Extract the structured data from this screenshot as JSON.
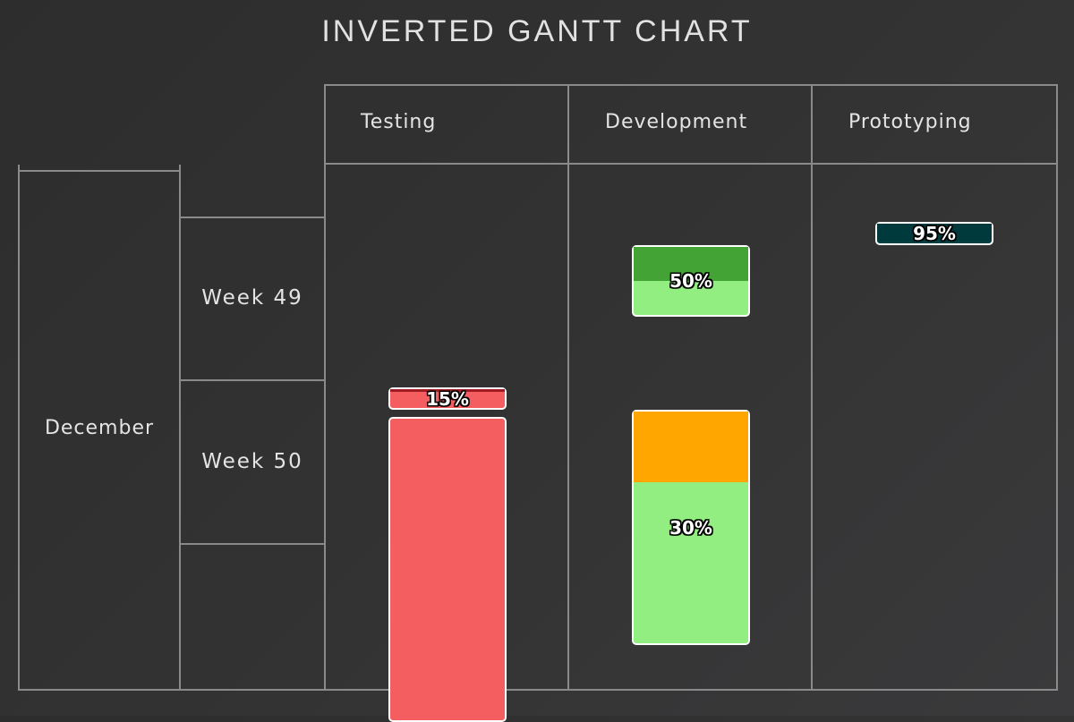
{
  "chart_data": {
    "type": "gantt",
    "title": "INVERTED GANTT CHART",
    "orientation": "vertical",
    "columns": [
      "Testing",
      "Development",
      "Prototyping"
    ],
    "time_axis": {
      "month": "December",
      "weeks": [
        "Week 49",
        "Week 50"
      ]
    },
    "tasks": [
      {
        "column": "Testing",
        "start": 1.04,
        "end": 1.18,
        "progress": 15,
        "color": "#f45e60",
        "progress_color": "#a01c22",
        "label": "15%"
      },
      {
        "column": "Testing",
        "start": 1.22,
        "end": 3.09,
        "progress": null,
        "color": "#f45e60",
        "progress_color": null,
        "label": ""
      },
      {
        "column": "Development",
        "start": 0.17,
        "end": 0.61,
        "progress": 50,
        "color": "#92ee80",
        "progress_color": "#43a435",
        "label": "50%"
      },
      {
        "column": "Development",
        "start": 1.18,
        "end": 2.62,
        "progress": 30,
        "color": "#92ee80",
        "progress_color": "#ffa600",
        "label": "30%"
      },
      {
        "column": "Prototyping",
        "start": 0.03,
        "end": 0.17,
        "progress": 95,
        "color": "#003f42",
        "progress_color": "#003a3d",
        "label": "95%"
      }
    ],
    "colors": {
      "grid": "#8a8a8a",
      "bar_border": "#ffffff"
    }
  }
}
